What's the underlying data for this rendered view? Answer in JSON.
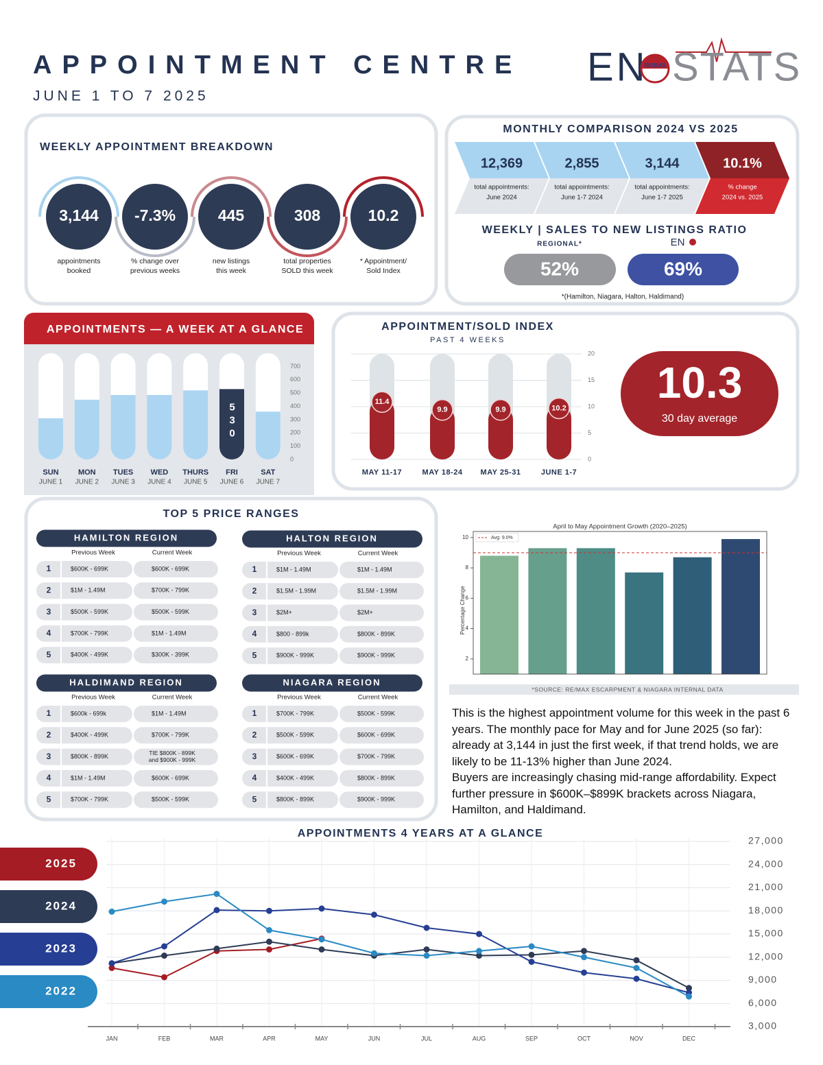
{
  "header": {
    "title": "APPOINTMENT CENTRE",
    "subtitle": "JUNE 1 TO 7 2025",
    "logo": {
      "prefix": "EN",
      "badge": "RE/MAX",
      "wordmark": "STATS"
    }
  },
  "weekly_breakdown": {
    "title": "WEEKLY APPOINTMENT BREAKDOWN",
    "items": [
      {
        "value": "3,144",
        "label": [
          "appointments",
          "booked"
        ]
      },
      {
        "value": "-7.3%",
        "label": [
          "% change over",
          "previous weeks"
        ]
      },
      {
        "value": "445",
        "label": [
          "new listings",
          "this week"
        ]
      },
      {
        "value": "308",
        "label": [
          "total properties",
          "SOLD this week"
        ]
      },
      {
        "value": "10.2",
        "label": [
          "* Appointment/",
          "Sold Index"
        ]
      }
    ]
  },
  "monthly_comparison": {
    "title": "MONTHLY COMPARISON 2024 VS 2025",
    "items": [
      {
        "value": "12,369",
        "label": [
          "total appointments:",
          "June 2024"
        ]
      },
      {
        "value": "2,855",
        "label": [
          "total appointments:",
          "June 1-7 2024"
        ]
      },
      {
        "value": "3,144",
        "label": [
          "total appointments:",
          "June 1-7 2025"
        ]
      },
      {
        "value": "10.1%",
        "label": [
          "% change",
          "2024 vs. 2025"
        ]
      }
    ]
  },
  "ratio": {
    "title": "WEEKLY | SALES TO NEW LISTINGS RATIO",
    "regional_label": "REGIONAL*",
    "eno_label": "EN",
    "regional": "52%",
    "eno": "69%",
    "footnote": "*(Hamilton, Niagara, Halton, Haldimand)"
  },
  "week_glance": {
    "type": "bar",
    "title": "APPOINTMENTS — A WEEK AT A GLANCE",
    "categories": [
      "SUN",
      "MON",
      "TUES",
      "WED",
      "THURS",
      "FRI",
      "SAT"
    ],
    "dates": [
      "JUNE 1",
      "JUNE 2",
      "JUNE 3",
      "JUNE 4",
      "JUNE 5",
      "JUNE 6",
      "JUNE 7"
    ],
    "values": [
      310,
      450,
      485,
      485,
      520,
      530,
      360
    ],
    "value_labels": [
      null,
      null,
      null,
      null,
      null,
      "530",
      null
    ],
    "colors": [
      "#acd5f2",
      "#acd5f2",
      "#acd5f2",
      "#acd5f2",
      "#acd5f2",
      "#2e3b55",
      "#acd5f2"
    ],
    "track_color": "#ffffff",
    "ylim": [
      0,
      800
    ],
    "yticks": [
      0,
      100,
      200,
      300,
      400,
      500,
      600,
      700
    ]
  },
  "index_chart": {
    "type": "bar",
    "title": "APPOINTMENT/SOLD INDEX",
    "subtitle": "PAST 4 WEEKS",
    "categories": [
      "MAY 11-17",
      "MAY 18-24",
      "MAY 25-31",
      "JUNE 1-7"
    ],
    "values": [
      11.4,
      9.9,
      9.9,
      10.2
    ],
    "color": "#a3242a",
    "track_color": "#dde3e6",
    "ylim": [
      0,
      20
    ],
    "yticks": [
      0,
      5,
      10,
      15,
      20
    ],
    "grid": true
  },
  "average": {
    "value": "10.3",
    "label": "30 day average"
  },
  "price_ranges": {
    "title": "TOP 5 PRICE RANGES",
    "columns": [
      "Previous Week",
      "Current Week"
    ],
    "regions": [
      {
        "name": "HAMILTON REGION",
        "rows": [
          [
            "1",
            "$600K - 699K",
            "$600K - 699K"
          ],
          [
            "2",
            "$1M - 1.49M",
            "$700K - 799K"
          ],
          [
            "3",
            "$500K - 599K",
            "$500K - 599K"
          ],
          [
            "4",
            "$700K - 799K",
            "$1M - 1.49M"
          ],
          [
            "5",
            "$400K - 499K",
            "$300K - 399K"
          ]
        ]
      },
      {
        "name": "HALTON REGION",
        "rows": [
          [
            "1",
            "$1M - 1.49M",
            "$1M - 1.49M"
          ],
          [
            "2",
            "$1.5M - 1.99M",
            "$1.5M - 1.99M"
          ],
          [
            "3",
            "$2M+",
            "$2M+"
          ],
          [
            "4",
            "$800 - 899k",
            "$800K - 899K"
          ],
          [
            "5",
            "$900K - 999K",
            "$900K - 999K"
          ]
        ]
      },
      {
        "name": "HALDIMAND REGION",
        "rows": [
          [
            "1",
            "$600k - 699k",
            "$1M - 1.49M"
          ],
          [
            "2",
            "$400K - 499K",
            "$700K - 799K"
          ],
          [
            "3",
            "$800K - 899K",
            [
              "TIE $800K - 899K",
              "and $900K - 999K"
            ]
          ],
          [
            "4",
            "$1M - 1.49M",
            "$600K - 699K"
          ],
          [
            "5",
            "$700K - 799K",
            "$500K - 599K"
          ]
        ]
      },
      {
        "name": "NIAGARA REGION",
        "rows": [
          [
            "1",
            "$700K - 799K",
            "$500K - 599K"
          ],
          [
            "2",
            "$500K - 599K",
            "$600K - 699K"
          ],
          [
            "3",
            "$600K - 699K",
            "$700K - 799K"
          ],
          [
            "4",
            "$400K - 499K",
            "$800K - 899K"
          ],
          [
            "5",
            "$800K - 899K",
            "$900K - 999K"
          ]
        ]
      }
    ]
  },
  "growth_chart": {
    "type": "bar",
    "title": "April to May Appointment Growth (2020–2025)",
    "ylabel": "Percentage Change",
    "values": [
      8.8,
      9.3,
      9.3,
      7.7,
      8.7,
      9.9
    ],
    "colors": [
      "#86b596",
      "#679f8d",
      "#4f8c86",
      "#3a7480",
      "#2f5f78",
      "#2f4a72"
    ],
    "ylim": [
      1,
      10.4
    ],
    "yticks": [
      2,
      4,
      6,
      8,
      10
    ],
    "average": 9.0,
    "average_label": "Avg: 9.0%",
    "grid": false
  },
  "source": "*SOURCE:  RE/MAX ESCARPMENT & NIAGARA INTERNAL DATA",
  "commentary": [
    "This is the highest appointment volume for this week in the past 6 years.  The monthly pace for May and for June 2025 (so far): already at 3,144 in just the first week, if that trend holds, we are likely to be 11-13% higher than June 2024.",
    "Buyers are increasingly chasing mid-range affordability. Expect further pressure in $600K–$899K brackets across Niagara, Hamilton, and Haldimand."
  ],
  "years_chart": {
    "type": "line",
    "title": "APPOINTMENTS 4 YEARS AT A GLANCE",
    "categories": [
      "JAN",
      "FEB",
      "MAR",
      "APR",
      "MAY",
      "JUN",
      "JUL",
      "AUG",
      "SEP",
      "OCT",
      "NOV",
      "DEC"
    ],
    "series": [
      {
        "name": "2025",
        "color": "#a51c24",
        "values": [
          10600,
          9400,
          12800,
          13000,
          14400,
          null,
          null,
          null,
          null,
          null,
          null,
          null
        ]
      },
      {
        "name": "2024",
        "color": "#2e3b55",
        "values": [
          11200,
          12200,
          13100,
          14000,
          13000,
          12200,
          13000,
          12200,
          12300,
          12800,
          11600,
          8000
        ]
      },
      {
        "name": "2023",
        "color": "#263f94",
        "values": [
          11200,
          13400,
          18100,
          18000,
          18300,
          17500,
          15800,
          15000,
          11400,
          10000,
          9200,
          7400
        ]
      },
      {
        "name": "2022",
        "color": "#2a8ac4",
        "values": [
          17900,
          19200,
          20200,
          15500,
          14300,
          12500,
          12200,
          12800,
          13400,
          12000,
          10600,
          6900
        ]
      }
    ],
    "ylim": [
      3000,
      27000
    ],
    "yticks": [
      {
        "value": 3000,
        "label": "3,000"
      },
      {
        "value": 6000,
        "label": "6,000"
      },
      {
        "value": 9000,
        "label": "9,000"
      },
      {
        "value": 12000,
        "label": "12,000"
      },
      {
        "value": 15000,
        "label": "15,000"
      },
      {
        "value": 18000,
        "label": "18,000"
      },
      {
        "value": 21000,
        "label": "21,000"
      },
      {
        "value": 24000,
        "label": "24,000"
      },
      {
        "value": 27000,
        "label": "27,000"
      }
    ],
    "grid": true
  }
}
